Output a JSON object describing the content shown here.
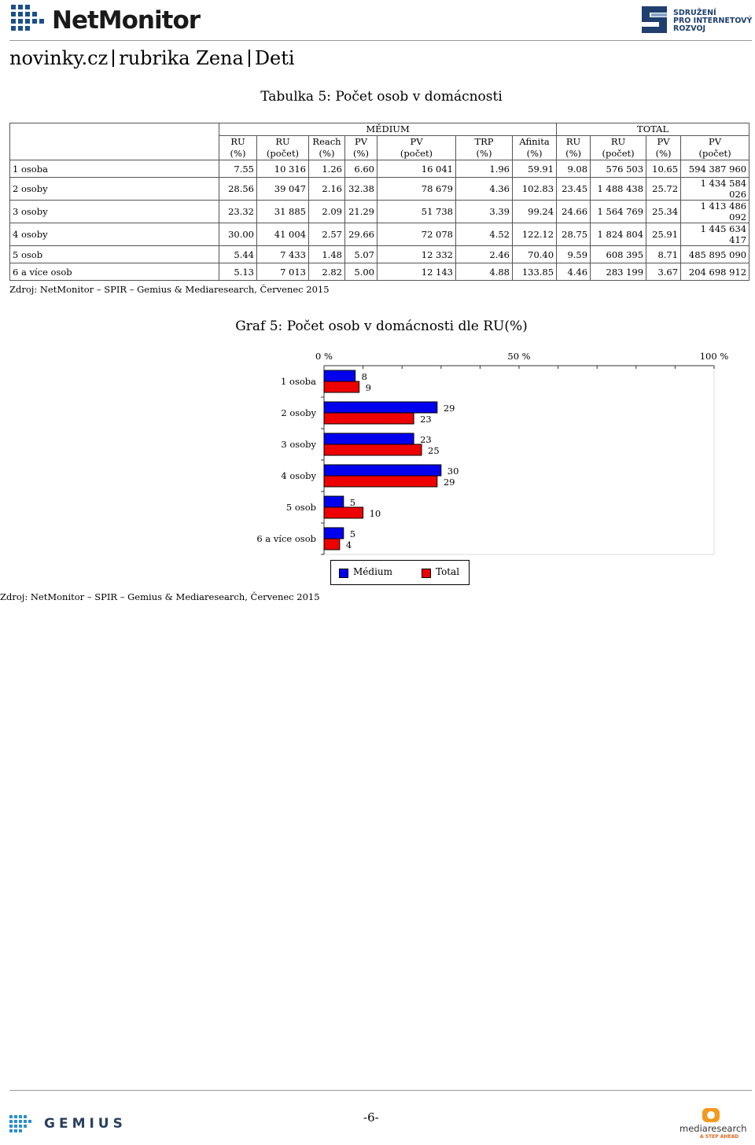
{
  "header": {
    "logo_text": "NetMonitor",
    "partner_logo_lines": [
      "SDRUŽENÍ",
      "PRO INTERNETOVÝ",
      "ROZVOJ"
    ],
    "breadcrumb": [
      "novinky.cz",
      "rubrika Zena",
      "Deti"
    ]
  },
  "table": {
    "title": "Tabulka 5: Počet osob v domácnosti",
    "group_medium": "MĚDIUM",
    "group_total": "TOTAL",
    "columns": [
      [
        "RU",
        "(%)"
      ],
      [
        "RU",
        "(počet)"
      ],
      [
        "Reach",
        "(%)"
      ],
      [
        "PV",
        "(%)"
      ],
      [
        "PV",
        "(počet)"
      ],
      [
        "TRP",
        "(%)"
      ],
      [
        "Afinita",
        "(%)"
      ],
      [
        "RU",
        "(%)"
      ],
      [
        "RU",
        "(počet)"
      ],
      [
        "PV",
        "(%)"
      ],
      [
        "PV",
        "(počet)"
      ]
    ],
    "rows": [
      {
        "label": "1 osoba",
        "cells": [
          "7.55",
          "10 316",
          "1.26",
          "6.60",
          "16 041",
          "1.96",
          "59.91",
          "9.08",
          "576 503",
          "10.65",
          "594 387 960"
        ]
      },
      {
        "label": "2 osoby",
        "cells": [
          "28.56",
          "39 047",
          "2.16",
          "32.38",
          "78 679",
          "4.36",
          "102.83",
          "23.45",
          "1 488 438",
          "25.72",
          "1 434 584 026"
        ]
      },
      {
        "label": "3 osoby",
        "cells": [
          "23.32",
          "31 885",
          "2.09",
          "21.29",
          "51 738",
          "3.39",
          "99.24",
          "24.66",
          "1 564 769",
          "25.34",
          "1 413 486 092"
        ]
      },
      {
        "label": "4 osoby",
        "cells": [
          "30.00",
          "41 004",
          "2.57",
          "29.66",
          "72 078",
          "4.52",
          "122.12",
          "28.75",
          "1 824 804",
          "25.91",
          "1 445 634 417"
        ]
      },
      {
        "label": "5 osob",
        "cells": [
          "5.44",
          "7 433",
          "1.48",
          "5.07",
          "12 332",
          "2.46",
          "70.40",
          "9.59",
          "608 395",
          "8.71",
          "485 895 090"
        ]
      },
      {
        "label": "6 a více osob",
        "cells": [
          "5.13",
          "7 013",
          "2.82",
          "5.00",
          "12 143",
          "4.88",
          "133.85",
          "4.46",
          "283 199",
          "3.67",
          "204 698 912"
        ]
      }
    ],
    "source": "Zdroj: NetMonitor – SPIR – Gemius & Mediaresearch, Červenec 2015"
  },
  "chart_data": {
    "type": "bar",
    "orientation": "horizontal",
    "title": "Graf 5: Počet osob v domácnosti dle RU(%)",
    "categories": [
      "1 osoba",
      "2 osoby",
      "3 osoby",
      "4 osoby",
      "5 osob",
      "6 a více osob"
    ],
    "series": [
      {
        "name": "Médium",
        "values": [
          8,
          29,
          23,
          30,
          5,
          5
        ],
        "color": "#0000ee"
      },
      {
        "name": "Total",
        "values": [
          9,
          23,
          25,
          29,
          10,
          4
        ],
        "color": "#ee0000"
      }
    ],
    "xlim": [
      0,
      100
    ],
    "x_ticks": [
      "0 %",
      "50 %",
      "100 %"
    ],
    "legend_position": "bottom",
    "source": "Zdroj: NetMonitor – SPIR – Gemius & Mediaresearch, Červenec 2015"
  },
  "footer": {
    "page_number": "-6-",
    "logo_left": "GEMIUS",
    "logo_right": "mediaresearch",
    "logo_right_tagline": "A STEP AHEAD"
  }
}
